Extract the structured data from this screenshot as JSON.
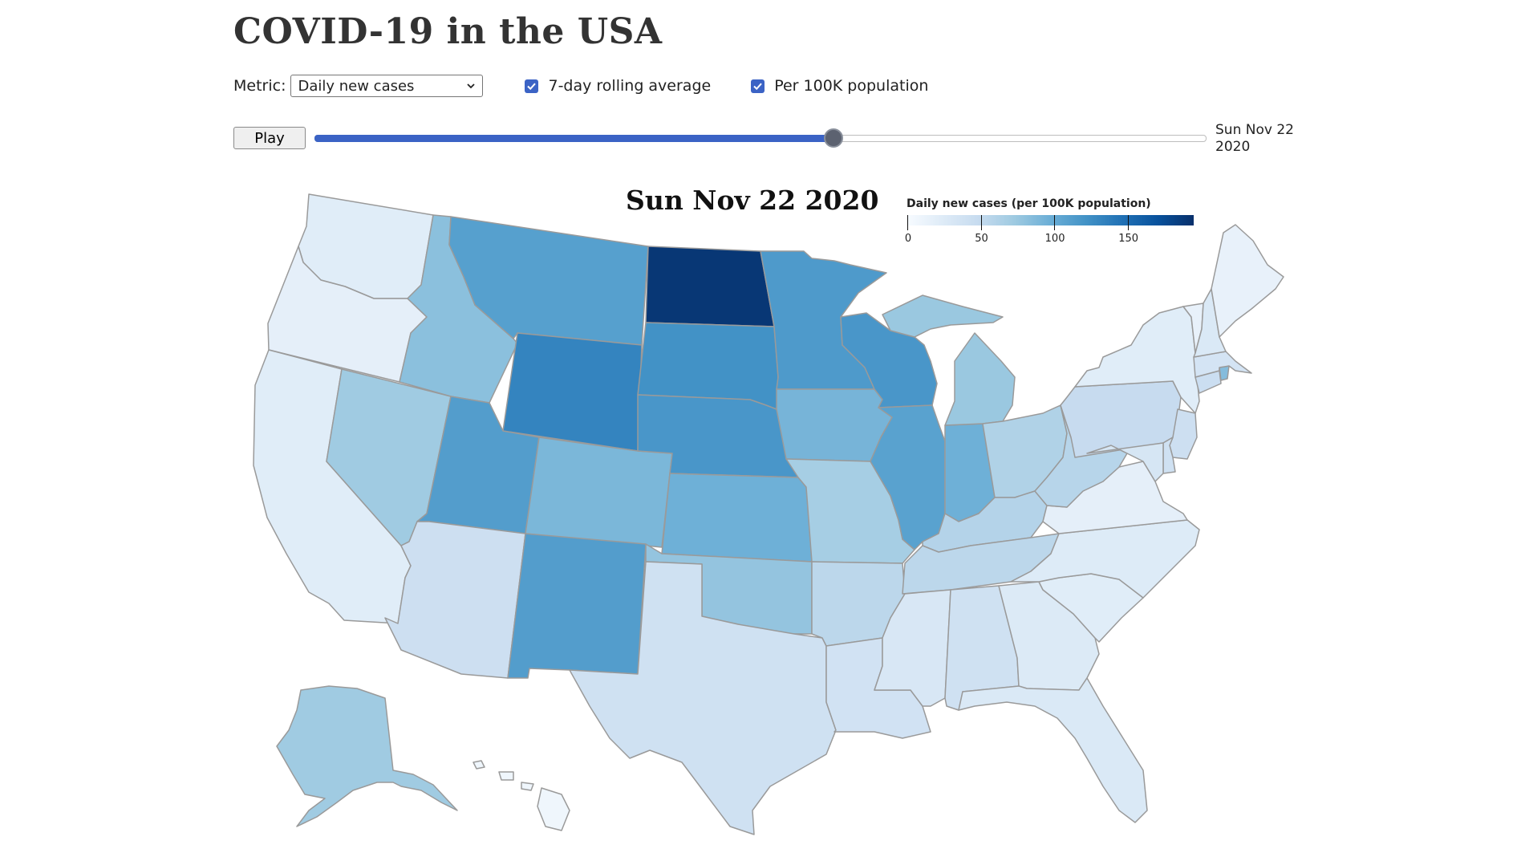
{
  "title": "COVID-19 in the USA",
  "controls": {
    "metric_label": "Metric:",
    "metric_selected": "Daily new cases",
    "rolling_average_label": "7-day rolling average",
    "rolling_average_checked": true,
    "per_capita_label": "Per 100K population",
    "per_capita_checked": true
  },
  "timeline": {
    "play_label": "Play",
    "position_fraction": 0.582,
    "current_date_line1": "Sun Nov 22",
    "current_date_line2": "2020"
  },
  "map": {
    "date_title": "Sun Nov 22 2020",
    "legend": {
      "title": "Daily new cases (per 100K population)",
      "min": 0,
      "max": 195,
      "ticks": [
        0,
        50,
        100,
        150
      ]
    },
    "color_scale": [
      "#f7fbff",
      "#deebf7",
      "#c6dbef",
      "#9ecae1",
      "#6baed6",
      "#4292c6",
      "#2171b5",
      "#08519c",
      "#08306b"
    ],
    "states": [
      {
        "name": "Washington",
        "value": 22
      },
      {
        "name": "Oregon",
        "value": 18
      },
      {
        "name": "California",
        "value": 22
      },
      {
        "name": "Nevada",
        "value": 72
      },
      {
        "name": "Idaho",
        "value": 82
      },
      {
        "name": "Montana",
        "value": 110
      },
      {
        "name": "Wyoming",
        "value": 132
      },
      {
        "name": "Utah",
        "value": 112
      },
      {
        "name": "Arizona",
        "value": 42
      },
      {
        "name": "Colorado",
        "value": 90
      },
      {
        "name": "New Mexico",
        "value": 112
      },
      {
        "name": "North Dakota",
        "value": 190
      },
      {
        "name": "South Dakota",
        "value": 122
      },
      {
        "name": "Nebraska",
        "value": 118
      },
      {
        "name": "Kansas",
        "value": 96
      },
      {
        "name": "Oklahoma",
        "value": 78
      },
      {
        "name": "Texas",
        "value": 40
      },
      {
        "name": "Minnesota",
        "value": 115
      },
      {
        "name": "Iowa",
        "value": 92
      },
      {
        "name": "Missouri",
        "value": 68
      },
      {
        "name": "Arkansas",
        "value": 55
      },
      {
        "name": "Louisiana",
        "value": 38
      },
      {
        "name": "Wisconsin",
        "value": 118
      },
      {
        "name": "Illinois",
        "value": 108
      },
      {
        "name": "Michigan",
        "value": 75
      },
      {
        "name": "Indiana",
        "value": 96
      },
      {
        "name": "Ohio",
        "value": 62
      },
      {
        "name": "Kentucky",
        "value": 60
      },
      {
        "name": "Tennessee",
        "value": 55
      },
      {
        "name": "Mississippi",
        "value": 30
      },
      {
        "name": "Alabama",
        "value": 40
      },
      {
        "name": "Georgia",
        "value": 26
      },
      {
        "name": "Florida",
        "value": 28
      },
      {
        "name": "South Carolina",
        "value": 22
      },
      {
        "name": "North Carolina",
        "value": 25
      },
      {
        "name": "Virginia",
        "value": 18
      },
      {
        "name": "West Virginia",
        "value": 58
      },
      {
        "name": "Pennsylvania",
        "value": 48
      },
      {
        "name": "New York",
        "value": 22
      },
      {
        "name": "New Jersey",
        "value": 42
      },
      {
        "name": "Delaware",
        "value": 40
      },
      {
        "name": "Maryland",
        "value": 32
      },
      {
        "name": "Connecticut",
        "value": 44
      },
      {
        "name": "Rhode Island",
        "value": 85
      },
      {
        "name": "Massachusetts",
        "value": 35
      },
      {
        "name": "Vermont",
        "value": 15
      },
      {
        "name": "New Hampshire",
        "value": 28
      },
      {
        "name": "Maine",
        "value": 15
      },
      {
        "name": "Alaska",
        "value": 72
      },
      {
        "name": "Hawaii",
        "value": 8
      }
    ]
  }
}
